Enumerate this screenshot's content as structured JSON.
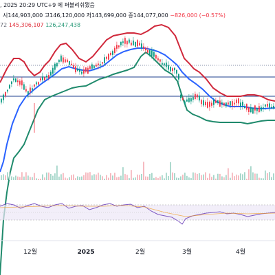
{
  "header": {
    "title_line": ", 2025 20:29 UTC+9 에 퍼블리쉬됐음",
    "open": "시144,903,000",
    "high": "고146,120,000",
    "low": "저143,699,000",
    "close": "종144,077,000",
    "change": "−826,000 (−0.57%)",
    "bb_label": "72",
    "bb_upper": "145,306,107",
    "bb_lower": "126,247,438"
  },
  "xaxis": {
    "labels": [
      "12월",
      "2025",
      "2월",
      "3월",
      "4월"
    ]
  },
  "colors": {
    "bg": "#ffffff",
    "up": "#089981",
    "down": "#f23645",
    "upper_band": "#d0283b",
    "basis": "#2962ff",
    "lower_band": "#1f8a6c",
    "hline": "#1c3f8c",
    "oscillator": "#7e57c2"
  }
}
